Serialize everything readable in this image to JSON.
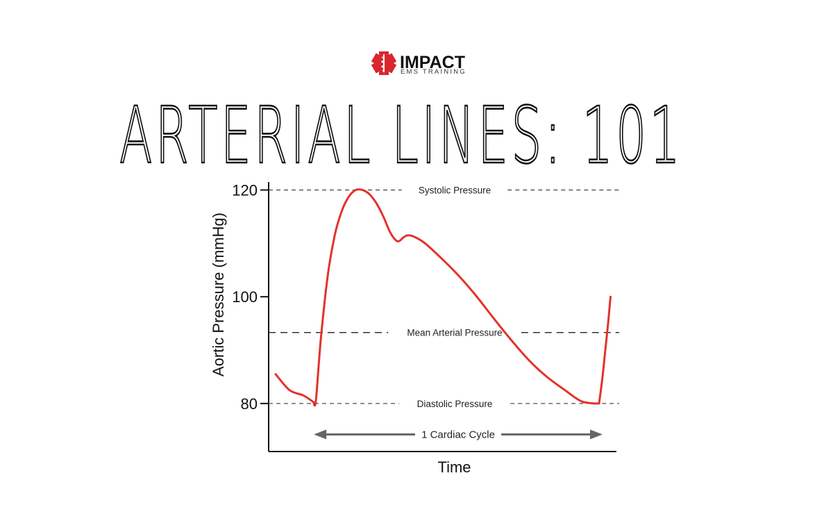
{
  "logo": {
    "name": "IMPACT",
    "tagline": "EMS TRAINING",
    "icon": "star-of-life-icon",
    "color": "#d9272e"
  },
  "title": "ARTERIAL LINES: 101",
  "chart_data": {
    "type": "line",
    "xlabel": "Time",
    "ylabel": "Aortic Pressure (mmHg)",
    "y_ticks": [
      80,
      100,
      120
    ],
    "ylim": [
      71,
      121.5
    ],
    "xlim": [
      0,
      100
    ],
    "x_ticks": [],
    "grid": false,
    "legend": "none",
    "series": [
      {
        "color": "#e2332b",
        "x": [
          2,
          6,
          10,
          13,
          13.6,
          15,
          17,
          19,
          21,
          23,
          25,
          27,
          29,
          31,
          33,
          35,
          37,
          38.5,
          40,
          42,
          45,
          50,
          55,
          60,
          65,
          70,
          75,
          80,
          85,
          90,
          95,
          96,
          96.8,
          97.6,
          98.3
        ],
        "y": [
          85.5,
          82.5,
          81.5,
          80.2,
          80.6,
          92,
          104,
          111.5,
          116,
          118.7,
          120,
          120,
          119.2,
          117.5,
          115,
          112,
          110.4,
          111,
          111.5,
          111.2,
          110,
          107,
          103.7,
          99.9,
          95.7,
          91.7,
          88,
          85,
          82.6,
          80.4,
          80,
          85,
          90,
          95,
          100
        ]
      }
    ],
    "reference_lines": [
      {
        "label": "Systolic Pressure",
        "y": 120
      },
      {
        "label": "Mean Arterial Pressure",
        "y": 93.3
      },
      {
        "label": "Diastolic Pressure",
        "y": 80
      }
    ],
    "annotations": [
      {
        "label": "1 Cardiac Cycle",
        "type": "double-arrow",
        "x_start": 13,
        "x_end": 96,
        "y": 74.2,
        "color": "#666666"
      }
    ]
  }
}
